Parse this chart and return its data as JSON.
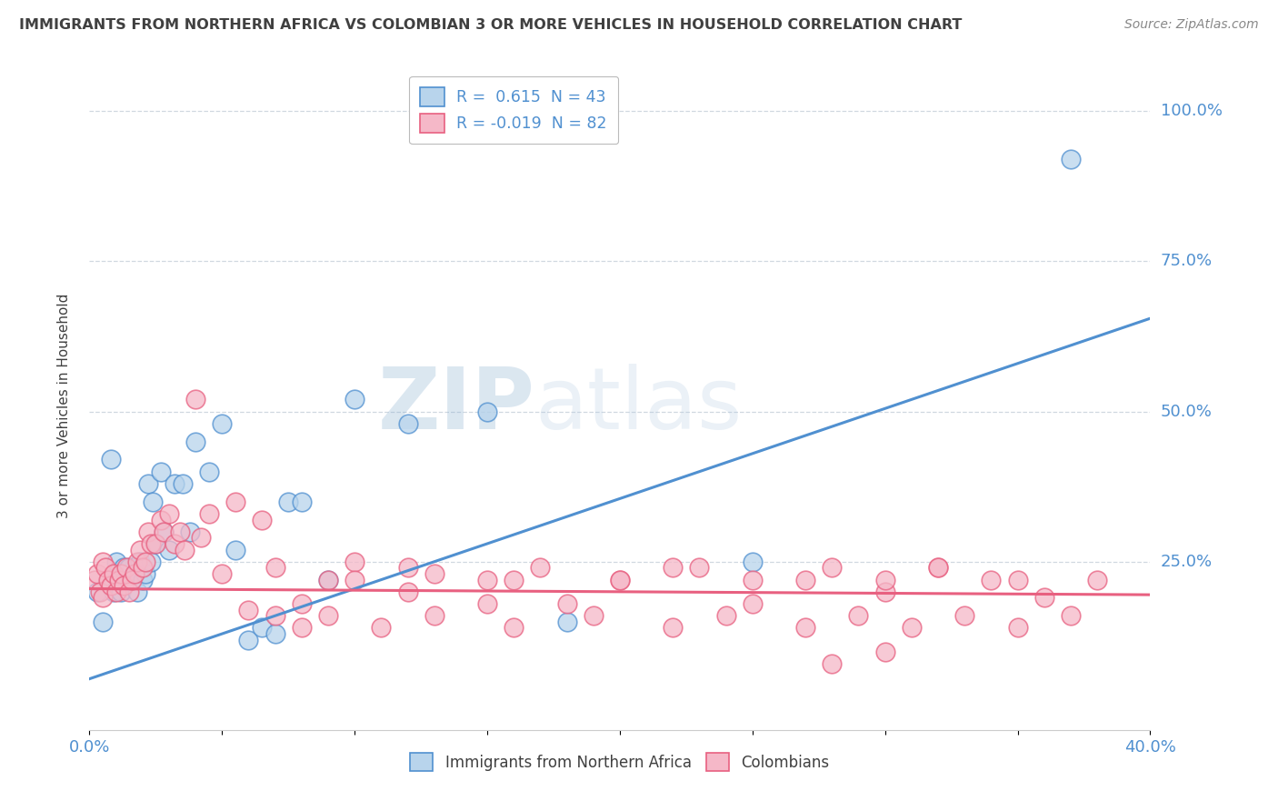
{
  "title": "IMMIGRANTS FROM NORTHERN AFRICA VS COLOMBIAN 3 OR MORE VEHICLES IN HOUSEHOLD CORRELATION CHART",
  "source": "Source: ZipAtlas.com",
  "watermark": "ZIPatlas",
  "legend_label_blue": "Immigrants from Northern Africa",
  "legend_label_pink": "Colombians",
  "legend_r_blue": "R =  0.615  N = 43",
  "legend_r_pink": "R = -0.019  N = 82",
  "blue_color": "#b8d4ec",
  "pink_color": "#f5b8c8",
  "blue_line_color": "#5090d0",
  "pink_line_color": "#e86080",
  "title_color": "#404040",
  "axis_label_color": "#5090d0",
  "r_label_color": "#5090d0",
  "background_color": "#ffffff",
  "xlim": [
    0.0,
    0.4
  ],
  "ylim": [
    -0.03,
    1.05
  ],
  "blue_scatter_x": [
    0.003,
    0.005,
    0.007,
    0.008,
    0.009,
    0.01,
    0.011,
    0.012,
    0.013,
    0.014,
    0.015,
    0.016,
    0.017,
    0.018,
    0.019,
    0.02,
    0.021,
    0.022,
    0.023,
    0.024,
    0.025,
    0.027,
    0.028,
    0.03,
    0.032,
    0.035,
    0.038,
    0.04,
    0.045,
    0.05,
    0.055,
    0.06,
    0.065,
    0.07,
    0.075,
    0.08,
    0.09,
    0.1,
    0.12,
    0.15,
    0.18,
    0.25,
    0.37
  ],
  "blue_scatter_y": [
    0.2,
    0.15,
    0.22,
    0.42,
    0.2,
    0.25,
    0.22,
    0.2,
    0.24,
    0.22,
    0.24,
    0.22,
    0.23,
    0.2,
    0.25,
    0.22,
    0.23,
    0.38,
    0.25,
    0.35,
    0.28,
    0.4,
    0.3,
    0.27,
    0.38,
    0.38,
    0.3,
    0.45,
    0.4,
    0.48,
    0.27,
    0.12,
    0.14,
    0.13,
    0.35,
    0.35,
    0.22,
    0.52,
    0.48,
    0.5,
    0.15,
    0.25,
    0.92
  ],
  "pink_scatter_x": [
    0.002,
    0.003,
    0.004,
    0.005,
    0.005,
    0.006,
    0.007,
    0.008,
    0.009,
    0.01,
    0.011,
    0.012,
    0.013,
    0.014,
    0.015,
    0.016,
    0.017,
    0.018,
    0.019,
    0.02,
    0.021,
    0.022,
    0.023,
    0.025,
    0.027,
    0.028,
    0.03,
    0.032,
    0.034,
    0.036,
    0.04,
    0.042,
    0.045,
    0.05,
    0.055,
    0.06,
    0.065,
    0.07,
    0.08,
    0.09,
    0.1,
    0.12,
    0.13,
    0.15,
    0.16,
    0.18,
    0.2,
    0.22,
    0.25,
    0.27,
    0.3,
    0.32,
    0.34,
    0.36,
    0.38,
    0.1,
    0.12,
    0.15,
    0.17,
    0.2,
    0.23,
    0.25,
    0.28,
    0.3,
    0.32,
    0.35,
    0.28,
    0.3,
    0.07,
    0.08,
    0.09,
    0.11,
    0.13,
    0.16,
    0.19,
    0.22,
    0.24,
    0.27,
    0.29,
    0.31,
    0.33,
    0.35,
    0.37
  ],
  "pink_scatter_y": [
    0.22,
    0.23,
    0.2,
    0.19,
    0.25,
    0.24,
    0.22,
    0.21,
    0.23,
    0.2,
    0.22,
    0.23,
    0.21,
    0.24,
    0.2,
    0.22,
    0.23,
    0.25,
    0.27,
    0.24,
    0.25,
    0.3,
    0.28,
    0.28,
    0.32,
    0.3,
    0.33,
    0.28,
    0.3,
    0.27,
    0.52,
    0.29,
    0.33,
    0.23,
    0.35,
    0.17,
    0.32,
    0.24,
    0.18,
    0.22,
    0.25,
    0.2,
    0.23,
    0.18,
    0.22,
    0.18,
    0.22,
    0.24,
    0.18,
    0.22,
    0.2,
    0.24,
    0.22,
    0.19,
    0.22,
    0.22,
    0.24,
    0.22,
    0.24,
    0.22,
    0.24,
    0.22,
    0.24,
    0.22,
    0.24,
    0.22,
    0.08,
    0.1,
    0.16,
    0.14,
    0.16,
    0.14,
    0.16,
    0.14,
    0.16,
    0.14,
    0.16,
    0.14,
    0.16,
    0.14,
    0.16,
    0.14,
    0.16
  ],
  "blue_trend_x": [
    0.0,
    0.4
  ],
  "blue_trend_y": [
    0.055,
    0.655
  ],
  "pink_trend_x": [
    0.0,
    0.4
  ],
  "pink_trend_y": [
    0.205,
    0.195
  ],
  "ytick_vals": [
    0.25,
    0.5,
    0.75,
    1.0
  ],
  "ytick_labels": [
    "25.0%",
    "50.0%",
    "75.0%",
    "100.0%"
  ],
  "xtick_labels_show": [
    "0.0%",
    "40.0%"
  ],
  "grid_color": "#d0d8e0",
  "spine_color": "#cccccc"
}
